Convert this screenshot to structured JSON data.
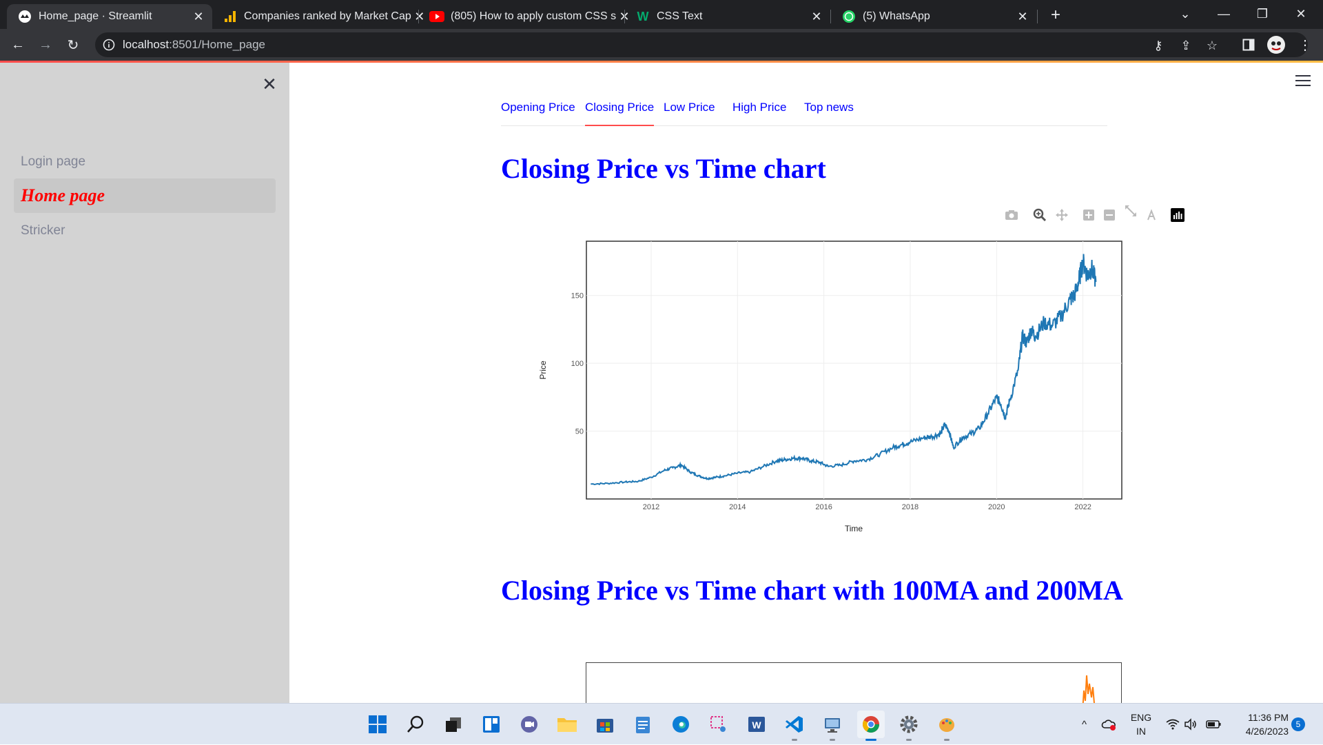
{
  "browser": {
    "tabs": [
      {
        "title": "Home_page · Streamlit",
        "icon": "streamlit-icon",
        "active": true
      },
      {
        "title": "Companies ranked by Market Cap",
        "icon": "bar-chart-icon",
        "active": false
      },
      {
        "title": "(805) How to apply custom CSS s",
        "icon": "youtube-icon",
        "active": false
      },
      {
        "title": "CSS Text",
        "icon": "w3schools-icon",
        "active": false
      },
      {
        "title": "(5) WhatsApp",
        "icon": "whatsapp-icon",
        "active": false
      }
    ],
    "url_host": "localhost",
    "url_path": ":8501/Home_page"
  },
  "sidebar": {
    "items": [
      {
        "label": "Login page"
      },
      {
        "label": "Home page",
        "active": true
      },
      {
        "label": "Stricker"
      }
    ]
  },
  "main": {
    "tabs": [
      {
        "label": "Opening Price"
      },
      {
        "label": "Closing Price",
        "active": true
      },
      {
        "label": "Low Price"
      },
      {
        "label": "High Price"
      },
      {
        "label": "Top news"
      }
    ],
    "heading1": "Closing Price vs Time chart",
    "heading2": "Closing Price vs Time chart with 100MA and 200MA"
  },
  "chart_data": {
    "type": "line",
    "title": "",
    "xlabel": "Time",
    "ylabel": "Price",
    "xlim": [
      2010.5,
      2022.9
    ],
    "ylim": [
      0,
      190
    ],
    "xticks": [
      "2012",
      "2014",
      "2016",
      "2018",
      "2020",
      "2022"
    ],
    "yticks": [
      "50",
      "100",
      "150"
    ],
    "color": "#1f77b4",
    "series": [
      {
        "x": [
          2010.6,
          2011.0,
          2011.4,
          2011.7,
          2012.0,
          2012.3,
          2012.5,
          2012.7,
          2012.9,
          2013.1,
          2013.3,
          2013.5,
          2013.7,
          2014.0,
          2014.3,
          2014.6,
          2014.9,
          2015.1,
          2015.3,
          2015.5,
          2015.7,
          2015.9,
          2016.1,
          2016.4,
          2016.7,
          2017.0,
          2017.3,
          2017.6,
          2017.8,
          2018.0,
          2018.3,
          2018.5,
          2018.7,
          2018.8,
          2018.9,
          2019.0,
          2019.2,
          2019.4,
          2019.6,
          2019.8,
          2020.0,
          2020.1,
          2020.2,
          2020.3,
          2020.5,
          2020.6,
          2020.7,
          2020.8,
          2020.9,
          2021.1,
          2021.3,
          2021.5,
          2021.7,
          2021.8,
          2021.9,
          2022.0,
          2022.1,
          2022.2,
          2022.3
        ],
        "y": [
          11,
          11.5,
          12.5,
          13,
          16,
          21,
          23,
          25,
          20,
          17,
          15,
          16,
          17,
          19,
          20,
          24,
          28,
          29,
          30,
          30,
          28,
          27,
          24,
          25,
          28,
          29,
          33,
          38,
          40,
          42,
          45,
          46,
          48,
          55,
          50,
          38,
          45,
          48,
          52,
          63,
          75,
          70,
          60,
          72,
          95,
          120,
          115,
          125,
          120,
          130,
          128,
          135,
          147,
          150,
          160,
          175,
          165,
          170,
          160
        ]
      }
    ]
  },
  "taskbar": {
    "lang1": "ENG",
    "lang2": "IN",
    "time": "11:36 PM",
    "date": "4/26/2023",
    "notif": "5"
  }
}
